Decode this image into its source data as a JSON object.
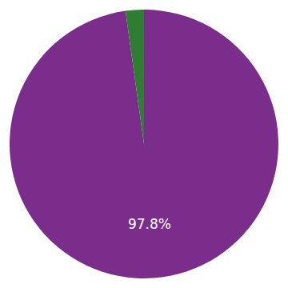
{
  "chart_data": {
    "type": "pie",
    "values": [
      97.8,
      2.2
    ],
    "colors": [
      "#7B2D8B",
      "#2E7D32"
    ],
    "value_labels": [
      "97.8%",
      null
    ]
  }
}
